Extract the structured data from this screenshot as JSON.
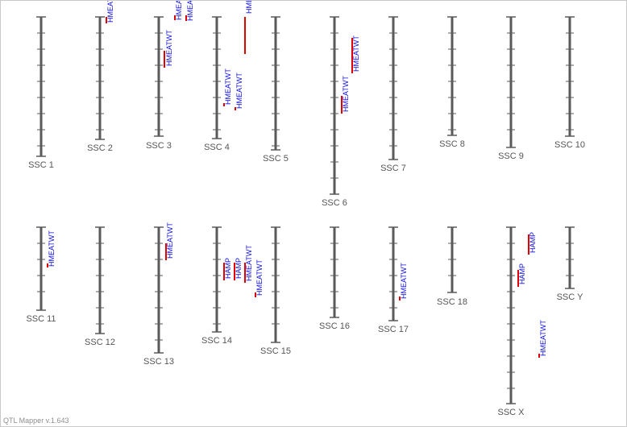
{
  "footer_text": "QTL Mapper v.1.643",
  "colors": {
    "chromosome": "#5a5a5a",
    "label": "#555555",
    "qtl_bar": "#e00000",
    "qtl_text": "#1010e0"
  },
  "chromosomes": [
    {
      "name": "SSC 1",
      "qtls": []
    },
    {
      "name": "SSC 2",
      "qtls": [
        {
          "label": "HMEAT"
        }
      ]
    },
    {
      "name": "SSC 3",
      "qtls": [
        {
          "label": "HMEATWT"
        },
        {
          "label": "HMEA"
        },
        {
          "label": "HMEA"
        }
      ]
    },
    {
      "name": "SSC 4",
      "qtls": [
        {
          "label": "HMEATWT"
        },
        {
          "label": "HMEATWT"
        },
        {
          "label": "HME"
        }
      ]
    },
    {
      "name": "SSC 5",
      "qtls": []
    },
    {
      "name": "SSC 6",
      "qtls": [
        {
          "label": "HMEATWT"
        },
        {
          "label": "HMEATWT"
        }
      ]
    },
    {
      "name": "SSC 7",
      "qtls": []
    },
    {
      "name": "SSC 8",
      "qtls": []
    },
    {
      "name": "SSC 9",
      "qtls": []
    },
    {
      "name": "SSC 10",
      "qtls": []
    },
    {
      "name": "SSC 11",
      "qtls": [
        {
          "label": "HMEATWT"
        }
      ]
    },
    {
      "name": "SSC 12",
      "qtls": []
    },
    {
      "name": "SSC 13",
      "qtls": [
        {
          "label": "HMEATWT"
        }
      ]
    },
    {
      "name": "SSC 14",
      "qtls": [
        {
          "label": "HAMP"
        },
        {
          "label": "HAMP"
        },
        {
          "label": "HMEATWT"
        },
        {
          "label": "HMEATWT"
        }
      ]
    },
    {
      "name": "SSC 15",
      "qtls": []
    },
    {
      "name": "SSC 16",
      "qtls": []
    },
    {
      "name": "SSC 17",
      "qtls": [
        {
          "label": "HMEATWT"
        }
      ]
    },
    {
      "name": "SSC 18",
      "qtls": []
    },
    {
      "name": "SSC X",
      "qtls": [
        {
          "label": "HAMP"
        },
        {
          "label": "HAMP"
        },
        {
          "label": "HMEATWT"
        }
      ]
    },
    {
      "name": "SSC Y",
      "qtls": []
    }
  ]
}
